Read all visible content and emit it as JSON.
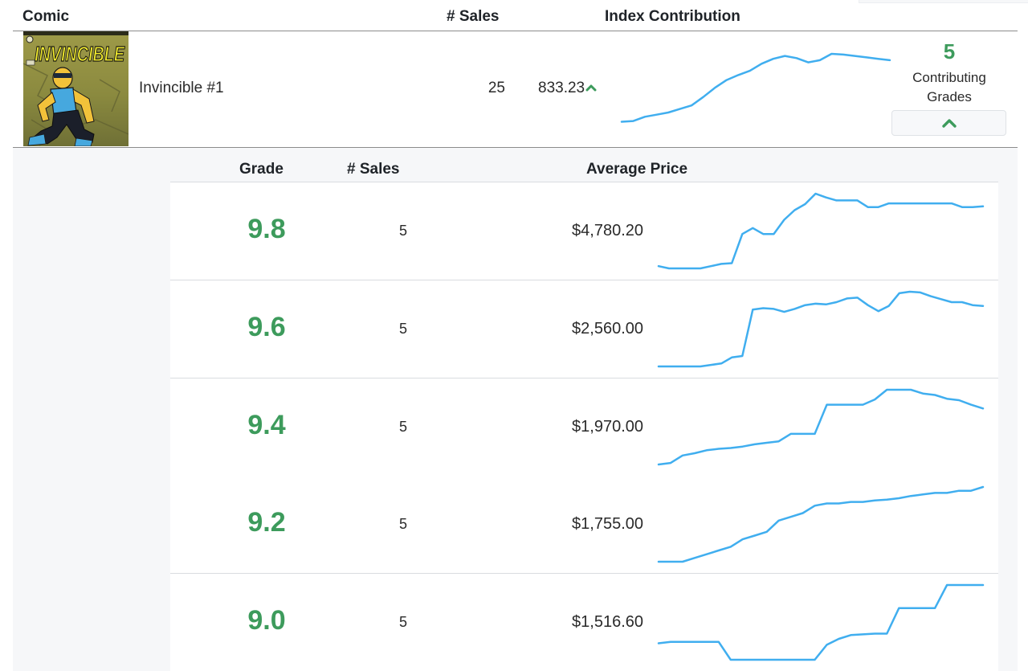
{
  "table": {
    "headers": {
      "comic": "Comic",
      "sales": "# Sales",
      "index_contribution": "Index Contribution"
    },
    "comic": {
      "title": "Invincible #1",
      "sales": "25",
      "index_contribution": "833.23",
      "trend": "up",
      "trend_icon": "chevron-up-icon",
      "cover_icon": "comic-cover-image",
      "contributing_grades_count": "5",
      "contributing_grades_label": "Contributing Grades",
      "toggle_icon": "chevron-up-icon",
      "index_sparkline": [
        4,
        5,
        11,
        14,
        17,
        22,
        27,
        39,
        52,
        63,
        70,
        76,
        86,
        93,
        97,
        94,
        88,
        91,
        100,
        99,
        97,
        95,
        93,
        91
      ]
    }
  },
  "grades_table": {
    "headers": {
      "grade": "Grade",
      "sales": "# Sales",
      "average_price": "Average Price"
    },
    "rows": [
      {
        "grade": "9.8",
        "sales": "5",
        "average_price": "$4,780.20",
        "sparkline": [
          3,
          0,
          0,
          0,
          0,
          3,
          6,
          7,
          46,
          54,
          46,
          46,
          65,
          78,
          86,
          100,
          95,
          91,
          91,
          91,
          82,
          82,
          87,
          87,
          87,
          87,
          87,
          87,
          87,
          82,
          82,
          83
        ]
      },
      {
        "grade": "9.6",
        "sales": "5",
        "average_price": "$2,560.00",
        "sparkline": [
          0,
          0,
          0,
          0,
          0,
          2,
          4,
          12,
          14,
          76,
          78,
          77,
          73,
          77,
          82,
          84,
          83,
          86,
          91,
          92,
          82,
          74,
          81,
          98,
          100,
          99,
          94,
          90,
          86,
          86,
          82,
          81
        ]
      },
      {
        "grade": "9.4",
        "sales": "5",
        "average_price": "$1,970.00",
        "sparkline": [
          0,
          2,
          12,
          15,
          19,
          21,
          22,
          24,
          27,
          29,
          31,
          41,
          41,
          41,
          80,
          80,
          80,
          80,
          87,
          100,
          100,
          100,
          95,
          93,
          88,
          86,
          80,
          75
        ]
      },
      {
        "grade": "9.2",
        "sales": "5",
        "average_price": "$1,755.00",
        "sparkline": [
          0,
          0,
          0,
          5,
          10,
          15,
          20,
          30,
          35,
          40,
          55,
          60,
          65,
          75,
          78,
          78,
          80,
          80,
          82,
          83,
          85,
          88,
          90,
          92,
          92,
          95,
          95,
          100
        ]
      },
      {
        "grade": "9.0",
        "sales": "5",
        "average_price": "$1,516.60",
        "sparkline": [
          22,
          24,
          24,
          24,
          24,
          24,
          0,
          0,
          0,
          0,
          0,
          0,
          0,
          0,
          20,
          28,
          33,
          34,
          35,
          35,
          69,
          69,
          69,
          69,
          100,
          100,
          100,
          100
        ]
      }
    ]
  },
  "colors": {
    "grade_green": "#3d9b5c",
    "sparkline_blue": "#40aeef",
    "panel_background": "#f6f7f9"
  }
}
